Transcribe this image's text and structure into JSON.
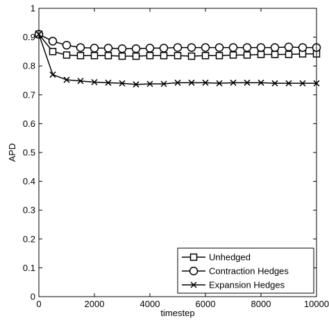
{
  "chart_data": {
    "type": "line",
    "title": "",
    "xlabel": "timestep",
    "ylabel": "APD",
    "xlim": [
      0,
      10000
    ],
    "ylim": [
      0,
      1
    ],
    "xticks": [
      0,
      2000,
      4000,
      6000,
      8000,
      10000
    ],
    "yticks": [
      0,
      0.1,
      0.2,
      0.3,
      0.4,
      0.5,
      0.6,
      0.7,
      0.8,
      0.9,
      1
    ],
    "grid": false,
    "legend_position": "bottom-right",
    "x": [
      0,
      500,
      1000,
      1500,
      2000,
      2500,
      3000,
      3500,
      4000,
      4500,
      5000,
      5500,
      6000,
      6500,
      7000,
      7500,
      8000,
      8500,
      9000,
      9500,
      10000
    ],
    "series": [
      {
        "name": "Unhedged",
        "marker": "square",
        "values": [
          0.91,
          0.85,
          0.838,
          0.836,
          0.836,
          0.836,
          0.834,
          0.834,
          0.836,
          0.836,
          0.836,
          0.834,
          0.836,
          0.836,
          0.838,
          0.838,
          0.84,
          0.84,
          0.84,
          0.842,
          0.842
        ]
      },
      {
        "name": "Contraction Hedges",
        "marker": "circle",
        "values": [
          0.91,
          0.886,
          0.872,
          0.864,
          0.862,
          0.862,
          0.86,
          0.86,
          0.862,
          0.862,
          0.864,
          0.864,
          0.864,
          0.864,
          0.864,
          0.864,
          0.864,
          0.864,
          0.866,
          0.864,
          0.864
        ]
      },
      {
        "name": "Expansion Hedges",
        "marker": "x",
        "values": [
          0.91,
          0.77,
          0.752,
          0.748,
          0.744,
          0.742,
          0.74,
          0.736,
          0.738,
          0.738,
          0.742,
          0.742,
          0.742,
          0.74,
          0.742,
          0.742,
          0.742,
          0.74,
          0.74,
          0.74,
          0.74
        ]
      }
    ],
    "colors": {
      "line": "#000000",
      "background": "#ffffff"
    }
  }
}
